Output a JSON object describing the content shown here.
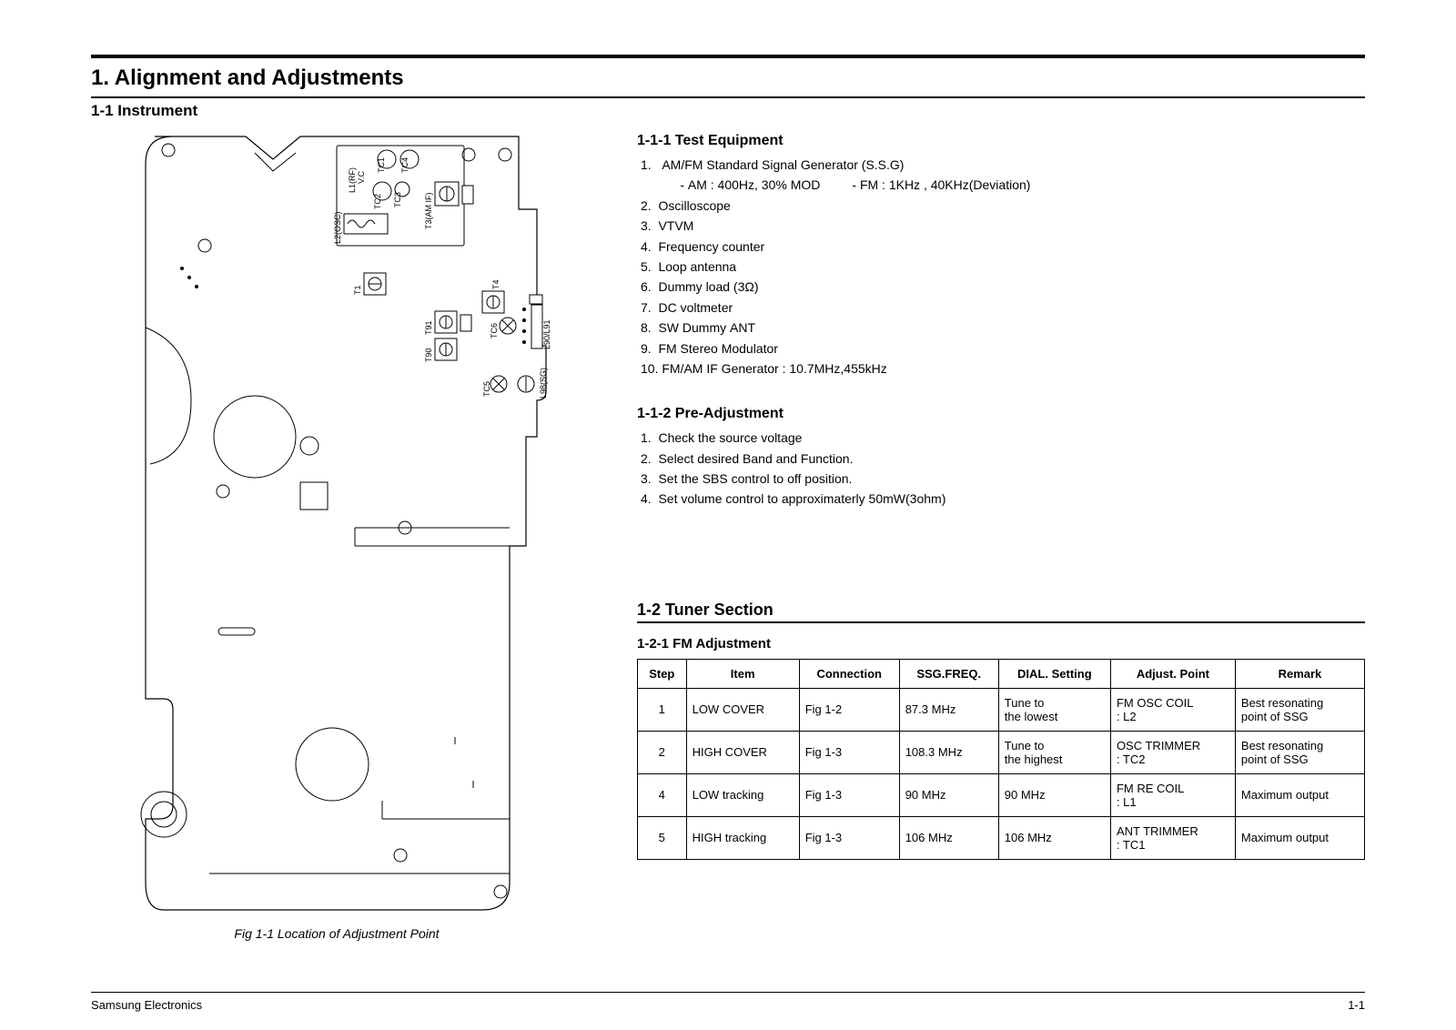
{
  "header": {
    "main_title": "1. Alignment and Adjustments",
    "subsection": "1-1 Instrument"
  },
  "diagram": {
    "caption": "Fig 1-1 Location of Adjustment Point",
    "labels": {
      "tc1": "TC1",
      "tc4": "TC4",
      "tc2": "TC2",
      "tc3": "TC3",
      "l1": "L1(RF)",
      "vc": "V.C",
      "l2": "L2(OSC)",
      "t3": "T3(AM IF)",
      "t1": "T1",
      "t4": "T4",
      "t90": "T90",
      "t91": "T91",
      "tc5": "TC5",
      "tc6": "TC6",
      "l90": "L90/L91",
      "l98": "L98(SG)"
    }
  },
  "test_equipment": {
    "title": "1-1-1 Test Equipment",
    "items": [
      "1.   AM/FM Standard Signal Generator (S.S.G)",
      "      - AM : 400Hz, 30% MOD         - FM : 1KHz , 40KHz(Deviation)",
      "2.  Oscilloscope",
      "3.  VTVM",
      "4.  Frequency counter",
      "5.  Loop antenna",
      "6.  Dummy load (3Ω)",
      "7.  DC voltmeter",
      "8.  SW Dummy ANT",
      "9.  FM Stereo Modulator",
      "10. FM/AM IF Generator : 10.7MHz,455kHz"
    ]
  },
  "pre_adjustment": {
    "title": "1-1-2  Pre-Adjustment",
    "items": [
      "1.  Check the source voltage",
      "2.  Select desired Band and Function.",
      "3.  Set the SBS control to off position.",
      "4.  Set volume control to approximaterly 50mW(3ohm)"
    ]
  },
  "tuner_section": {
    "title": "1-2 Tuner Section",
    "table_title": "1-2-1 FM Adjustment",
    "columns": [
      "Step",
      "Item",
      "Connection",
      "SSG.FREQ.",
      "DIAL. Setting",
      "Adjust. Point",
      "Remark"
    ],
    "rows": [
      [
        "1",
        "LOW COVER",
        "Fig 1-2",
        "87.3 MHz",
        "Tune to\nthe lowest",
        "FM OSC COIL\n: L2",
        "Best resonating\npoint of SSG"
      ],
      [
        "2",
        "HIGH COVER",
        "Fig 1-3",
        "108.3 MHz",
        "Tune to\nthe highest",
        "OSC TRIMMER\n: TC2",
        "Best resonating\npoint of SSG"
      ],
      [
        "4",
        "LOW tracking",
        "Fig 1-3",
        "90 MHz",
        "90 MHz",
        "FM RE COIL\n: L1",
        "Maximum output"
      ],
      [
        "5",
        "HIGH tracking",
        "Fig 1-3",
        "106 MHz",
        "106 MHz",
        "ANT TRIMMER\n: TC1",
        "Maximum output"
      ]
    ]
  },
  "footer": {
    "left": "Samsung Electronics",
    "right": "1-1"
  }
}
